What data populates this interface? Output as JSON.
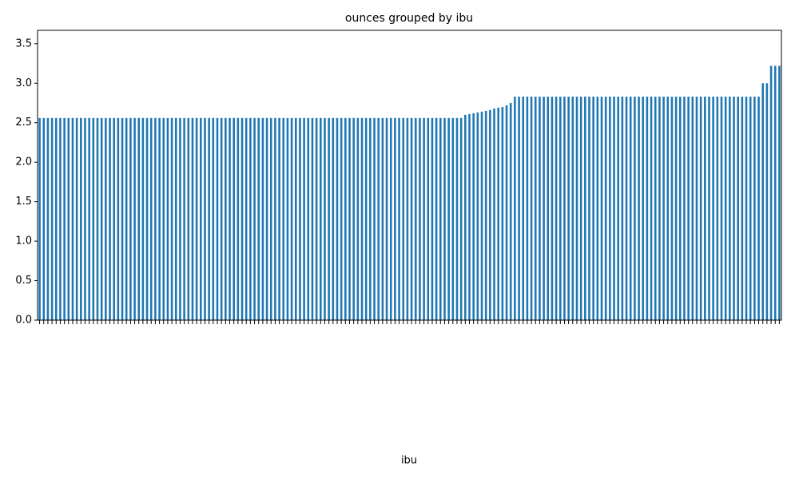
{
  "chart_data": {
    "type": "bar",
    "title": "ounces grouped by ibu",
    "xlabel": "ibu",
    "color": "#1f77b4",
    "categories": [
      null,
      null,
      null,
      null,
      null,
      null,
      null,
      null,
      null,
      null,
      null,
      null,
      null,
      null,
      null,
      null,
      null,
      null,
      null,
      null,
      null,
      null,
      null,
      null,
      null,
      null,
      null,
      null,
      null,
      null,
      null,
      null,
      null,
      null,
      null,
      null,
      null,
      null,
      null,
      null,
      null,
      null,
      null,
      null,
      null,
      null,
      null,
      null,
      null,
      null,
      null,
      null,
      null,
      null,
      null,
      null,
      null,
      null,
      null,
      null,
      null,
      null,
      null,
      null,
      null,
      null,
      null,
      null,
      null,
      null,
      null,
      null,
      null,
      null,
      null,
      null,
      null,
      null,
      null,
      null,
      null,
      null,
      null,
      null,
      null,
      null,
      null,
      null,
      null,
      null,
      null,
      null,
      null,
      null,
      null,
      null,
      null,
      null,
      null,
      null,
      null,
      null,
      null,
      null,
      null,
      null,
      null,
      null,
      null,
      null,
      null,
      null,
      null,
      null,
      null,
      null,
      null,
      null,
      null,
      null,
      null,
      null,
      null,
      null,
      null,
      null,
      null,
      null,
      null,
      null,
      null,
      null,
      null,
      null,
      null,
      null,
      null,
      null,
      null,
      null,
      null,
      null,
      null,
      null,
      null,
      null,
      null,
      null,
      null,
      null,
      null,
      null,
      null,
      null,
      null,
      null,
      null,
      null,
      null,
      null,
      null,
      null,
      null,
      null,
      null,
      null,
      null,
      null,
      null,
      null,
      null,
      null,
      null,
      null,
      null,
      null,
      null,
      null,
      null,
      null
    ],
    "values": [
      2.56,
      2.56,
      2.56,
      2.56,
      2.56,
      2.56,
      2.56,
      2.56,
      2.56,
      2.56,
      2.56,
      2.56,
      2.56,
      2.56,
      2.56,
      2.56,
      2.56,
      2.56,
      2.56,
      2.56,
      2.56,
      2.56,
      2.56,
      2.56,
      2.56,
      2.56,
      2.56,
      2.56,
      2.56,
      2.56,
      2.56,
      2.56,
      2.56,
      2.56,
      2.56,
      2.56,
      2.56,
      2.56,
      2.56,
      2.56,
      2.56,
      2.56,
      2.56,
      2.56,
      2.56,
      2.56,
      2.56,
      2.56,
      2.56,
      2.56,
      2.56,
      2.56,
      2.56,
      2.56,
      2.56,
      2.56,
      2.56,
      2.56,
      2.56,
      2.56,
      2.56,
      2.56,
      2.56,
      2.56,
      2.56,
      2.56,
      2.56,
      2.56,
      2.56,
      2.56,
      2.56,
      2.56,
      2.56,
      2.56,
      2.56,
      2.56,
      2.56,
      2.56,
      2.56,
      2.56,
      2.56,
      2.56,
      2.56,
      2.56,
      2.56,
      2.56,
      2.56,
      2.56,
      2.56,
      2.56,
      2.56,
      2.56,
      2.56,
      2.56,
      2.56,
      2.56,
      2.56,
      2.56,
      2.56,
      2.56,
      2.56,
      2.56,
      2.56,
      2.6,
      2.61,
      2.62,
      2.63,
      2.64,
      2.65,
      2.66,
      2.68,
      2.69,
      2.7,
      2.72,
      2.75,
      2.83,
      2.83,
      2.83,
      2.83,
      2.83,
      2.83,
      2.83,
      2.83,
      2.83,
      2.83,
      2.83,
      2.83,
      2.83,
      2.83,
      2.83,
      2.83,
      2.83,
      2.83,
      2.83,
      2.83,
      2.83,
      2.83,
      2.83,
      2.83,
      2.83,
      2.83,
      2.83,
      2.83,
      2.83,
      2.83,
      2.83,
      2.83,
      2.83,
      2.83,
      2.83,
      2.83,
      2.83,
      2.83,
      2.83,
      2.83,
      2.83,
      2.83,
      2.83,
      2.83,
      2.83,
      2.83,
      2.83,
      2.83,
      2.83,
      2.83,
      2.83,
      2.83,
      2.83,
      2.83,
      2.83,
      2.83,
      2.83,
      2.83,
      2.83,
      2.83,
      3.0,
      3.0,
      3.22,
      3.22,
      3.22
    ],
    "ylim": [
      0,
      3.67
    ],
    "yticks": [
      {
        "value": 0,
        "label": "0.0"
      },
      {
        "value": 0.5,
        "label": "0.5"
      },
      {
        "value": 1,
        "label": "1.0"
      },
      {
        "value": 1.5,
        "label": "1.5"
      },
      {
        "value": 2,
        "label": "2.0"
      },
      {
        "value": 2.5,
        "label": "2.5"
      },
      {
        "value": 3,
        "label": "3.0"
      },
      {
        "value": 3.5,
        "label": "3.5"
      }
    ]
  }
}
